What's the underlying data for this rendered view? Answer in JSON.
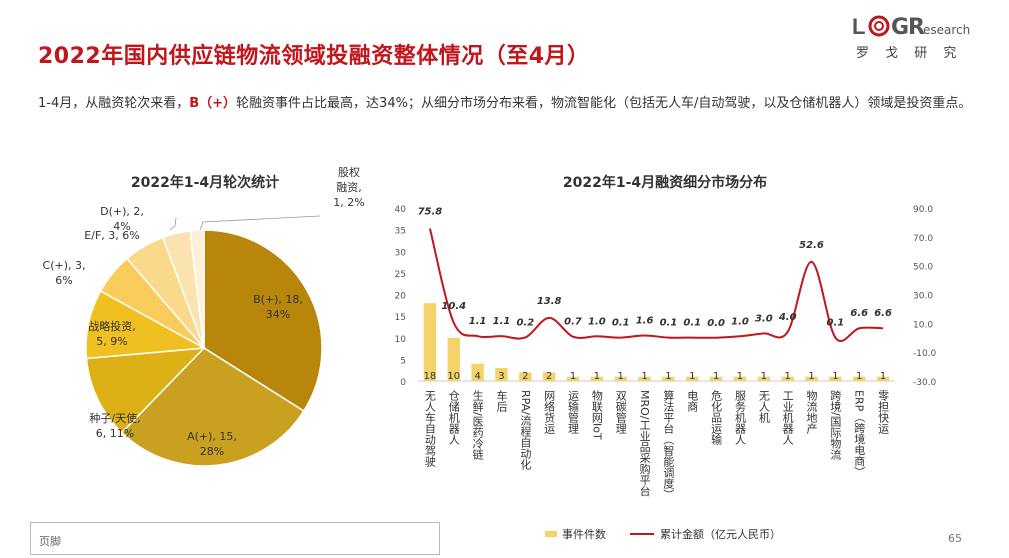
{
  "header": {
    "title": "2022年国内供应链物流领域投融资整体情况（至4月）",
    "logo_word_part1": "L",
    "logo_word_part2": "G",
    "logo_word_part3": "R",
    "logo_research": "esearch",
    "logo_cn": "罗 戈 研 究"
  },
  "summary": {
    "part1": "1-4月，从融资轮次来看，",
    "highlight": "B（+）",
    "part2": "轮融资事件占比最高，达34%；从细分市场分布来看，物流智能化（包括无人车/自动驾驶，以及仓储机器人）领域是投资重点。"
  },
  "footer": {
    "text": "页脚",
    "page": "65"
  },
  "colors": {
    "accent": "#c0161c"
  },
  "chart_data": [
    {
      "type": "pie",
      "title": "2022年1-4月轮次统计",
      "slices": [
        {
          "label_lines": [
            "B(+), 18,",
            "34%"
          ],
          "value": 18,
          "percent": 34,
          "color": "#b8860b"
        },
        {
          "label_lines": [
            "A(+), 15,",
            "28%"
          ],
          "value": 15,
          "percent": 28,
          "color": "#c9a020"
        },
        {
          "label_lines": [
            "种子/天使,",
            "6, 11%"
          ],
          "value": 6,
          "percent": 11,
          "color": "#ddb015"
        },
        {
          "label_lines": [
            "战略投资,",
            "5, 9%"
          ],
          "value": 5,
          "percent": 9,
          "color": "#f0c020"
        },
        {
          "label_lines": [
            "C(+), 3,",
            "6%"
          ],
          "value": 3,
          "percent": 6,
          "color": "#f7cc5a"
        },
        {
          "label_lines": [
            "E/F, 3, 6%"
          ],
          "value": 3,
          "percent": 6,
          "color": "#f9d98a"
        },
        {
          "label_lines": [
            "D(+), 2,",
            "4%"
          ],
          "value": 2,
          "percent": 4,
          "color": "#fbe3b0"
        },
        {
          "label_lines": [
            "股权",
            "融资,",
            "1, 2%"
          ],
          "value": 1,
          "percent": 2,
          "color": "#fdf0d6"
        }
      ]
    },
    {
      "type": "bar+line",
      "title": "2022年1-4月融资细分市场分布",
      "categories": [
        "无人车/自动驾驶",
        "仓储机器人",
        "生鲜/医药冷链",
        "车后",
        "RPA/流程自动化",
        "网络货运",
        "运输管理",
        "物联网IoT",
        "双碳管理",
        "MRO/工业品采购平台",
        "算法平台（智能调度）",
        "电商",
        "危化品运输",
        "服务机器人",
        "无人机",
        "工业机器人",
        "物流地产",
        "跨境/国际物流",
        "ERP（跨境电商）",
        "零担快运"
      ],
      "category_labels": [
        "无人车自动驾驶",
        "仓储机器人",
        "生鲜/医药冷链",
        "车后",
        "RPA/流程自动化",
        "网络货运",
        "运输管理",
        "物联网IoT",
        "双碳管理",
        "MRO/工业品采购平台",
        "算法平台（智能调度）",
        "电商",
        "危化品运输",
        "服务机器人",
        "无人机",
        "工业机器人",
        "物流地产",
        "跨境/国际物流",
        "ERP（跨境电商）",
        "零担快运"
      ],
      "series": [
        {
          "name": "事件件数",
          "kind": "bar",
          "axis": "left",
          "color": "#f5d36b",
          "values": [
            18,
            10,
            4,
            3,
            2,
            2,
            1,
            1,
            1,
            1,
            1,
            1,
            1,
            1,
            1,
            1,
            1,
            1,
            1,
            1
          ]
        },
        {
          "name": "累计金额（亿元人民币）",
          "kind": "line",
          "axis": "right",
          "color": "#c0161c",
          "values": [
            75.8,
            10.4,
            1.1,
            1.1,
            0.2,
            13.8,
            0.7,
            1.0,
            0.1,
            1.6,
            0.1,
            0.1,
            0.0,
            1.0,
            3.0,
            4.0,
            52.6,
            0.1,
            6.6,
            6.6
          ],
          "labels": [
            "75.8",
            "10.4",
            "1.1",
            "1.1",
            "0.2",
            "13.8",
            "0.7",
            "1.0",
            "0.1",
            "1.6",
            "0.1",
            "0.1",
            "0.0",
            "1.0",
            "3.0",
            "4.0",
            "52.6",
            "0.1",
            "6.6",
            "6.6"
          ]
        }
      ],
      "left_axis": {
        "ticks": [
          "0",
          "5",
          "10",
          "15",
          "20",
          "25",
          "30",
          "35",
          "40"
        ],
        "ylim": [
          0,
          40
        ]
      },
      "right_axis": {
        "ticks": [
          "-30.0",
          "-10.0",
          "10.0",
          "30.0",
          "50.0",
          "70.0",
          "90.0"
        ],
        "ylim": [
          -30,
          90
        ]
      },
      "legend": {
        "position": "bottom",
        "bar_label": "事件件数",
        "line_label": "累计金额（亿元人民币）"
      }
    }
  ]
}
